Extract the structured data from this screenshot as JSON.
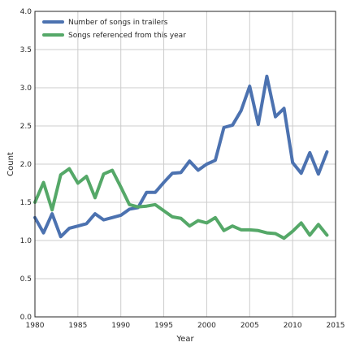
{
  "chart_data": {
    "type": "line",
    "title": "",
    "xlabel": "Year",
    "ylabel": "Count",
    "xlim": [
      1980,
      2015
    ],
    "ylim": [
      0.0,
      4.0
    ],
    "xticks": [
      1980,
      1985,
      1990,
      1995,
      2000,
      2005,
      2010,
      2015
    ],
    "yticks": [
      0.0,
      0.5,
      1.0,
      1.5,
      2.0,
      2.5,
      3.0,
      3.5,
      4.0
    ],
    "xtick_labels": [
      "1980",
      "1985",
      "1990",
      "1995",
      "2000",
      "2005",
      "2010",
      "2015"
    ],
    "ytick_labels": [
      "0.0",
      "0.5",
      "1.0",
      "1.5",
      "2.0",
      "2.5",
      "3.0",
      "3.5",
      "4.0"
    ],
    "grid": true,
    "legend_position": "top-left",
    "x": [
      1980,
      1981,
      1982,
      1983,
      1984,
      1985,
      1986,
      1987,
      1988,
      1989,
      1990,
      1991,
      1992,
      1993,
      1994,
      1995,
      1996,
      1997,
      1998,
      1999,
      2000,
      2001,
      2002,
      2003,
      2004,
      2005,
      2006,
      2007,
      2008,
      2009,
      2010,
      2011,
      2012,
      2013,
      2014
    ],
    "series": [
      {
        "name": "Number of songs in trailers",
        "color": "#4c72b0",
        "values": [
          1.3,
          1.1,
          1.35,
          1.05,
          1.16,
          1.19,
          1.22,
          1.35,
          1.27,
          1.3,
          1.33,
          1.41,
          1.43,
          1.63,
          1.63,
          1.76,
          1.88,
          1.89,
          2.04,
          1.92,
          2.0,
          2.05,
          2.48,
          2.51,
          2.7,
          3.02,
          2.52,
          3.15,
          2.62,
          2.73,
          2.02,
          1.88,
          2.15,
          1.87,
          2.16
        ]
      },
      {
        "name": "Songs referenced from this year",
        "color": "#55a868",
        "values": [
          1.5,
          1.76,
          1.4,
          1.86,
          1.94,
          1.75,
          1.84,
          1.56,
          1.87,
          1.92,
          1.7,
          1.47,
          1.44,
          1.45,
          1.47,
          1.39,
          1.31,
          1.29,
          1.19,
          1.26,
          1.23,
          1.3,
          1.13,
          1.19,
          1.14,
          1.14,
          1.13,
          1.1,
          1.09,
          1.03,
          1.12,
          1.23,
          1.07,
          1.21,
          1.07
        ]
      }
    ]
  }
}
